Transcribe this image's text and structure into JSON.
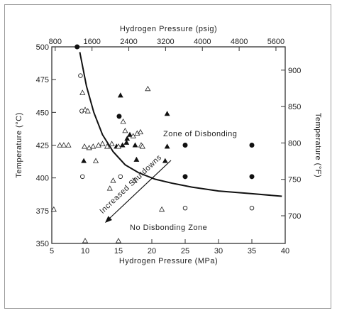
{
  "chart_data": {
    "type": "scatter",
    "top_axis": {
      "label": "Hydrogen Pressure (psig)",
      "ticks": [
        800,
        1600,
        2400,
        3200,
        4000,
        4800,
        5600
      ]
    },
    "bottom_axis": {
      "label": "Hydrogen Pressure (MPa)",
      "range": [
        5,
        40
      ],
      "ticks": [
        5,
        10,
        15,
        20,
        25,
        30,
        35,
        40
      ]
    },
    "left_axis": {
      "label": "Temperature (°C)",
      "range": [
        350,
        500
      ],
      "ticks": [
        350,
        375,
        400,
        425,
        450,
        475,
        500
      ]
    },
    "right_axis": {
      "label": "Temperature (°F)",
      "ticks": [
        700,
        750,
        800,
        850,
        900
      ]
    },
    "annotations": {
      "zone_disbonding": "Zone of Disbonding",
      "zone_no_disbonding": "No Disbonding Zone",
      "arrow_label": "Increased Shutdowns"
    },
    "boundary_curve": [
      {
        "x": 9.2,
        "y": 496
      },
      {
        "x": 10.2,
        "y": 470
      },
      {
        "x": 11.3,
        "y": 450
      },
      {
        "x": 12.6,
        "y": 433
      },
      {
        "x": 14.2,
        "y": 420
      },
      {
        "x": 16.0,
        "y": 410
      },
      {
        "x": 18.0,
        "y": 404
      },
      {
        "x": 20.5,
        "y": 399
      },
      {
        "x": 23.0,
        "y": 396
      },
      {
        "x": 26.0,
        "y": 393
      },
      {
        "x": 30.0,
        "y": 390
      },
      {
        "x": 35.0,
        "y": 388
      },
      {
        "x": 39.5,
        "y": 386
      }
    ],
    "series": [
      {
        "name": "filled circles",
        "marker": "filled-circle",
        "points": [
          {
            "x": 8.8,
            "y": 500
          },
          {
            "x": 15.1,
            "y": 447
          },
          {
            "x": 25,
            "y": 425
          },
          {
            "x": 35,
            "y": 425
          },
          {
            "x": 25,
            "y": 401
          },
          {
            "x": 35,
            "y": 401
          }
        ]
      },
      {
        "name": "open circles",
        "marker": "open-circle",
        "points": [
          {
            "x": 9.3,
            "y": 478
          },
          {
            "x": 9.5,
            "y": 451
          },
          {
            "x": 15.3,
            "y": 401
          },
          {
            "x": 9.6,
            "y": 401
          },
          {
            "x": 25,
            "y": 377
          },
          {
            "x": 35,
            "y": 377
          }
        ]
      },
      {
        "name": "filled triangles",
        "marker": "filled-triangle",
        "points": [
          {
            "x": 15.3,
            "y": 463
          },
          {
            "x": 22.3,
            "y": 449
          },
          {
            "x": 16.3,
            "y": 430
          },
          {
            "x": 16.7,
            "y": 433
          },
          {
            "x": 16.2,
            "y": 427
          },
          {
            "x": 15.6,
            "y": 425
          },
          {
            "x": 14.7,
            "y": 424
          },
          {
            "x": 17.5,
            "y": 425
          },
          {
            "x": 17.7,
            "y": 414
          },
          {
            "x": 9.8,
            "y": 413
          },
          {
            "x": 22.0,
            "y": 413
          },
          {
            "x": 22.3,
            "y": 424
          }
        ]
      },
      {
        "name": "open triangles",
        "marker": "open-triangle",
        "points": [
          {
            "x": 9.6,
            "y": 465
          },
          {
            "x": 10.0,
            "y": 452
          },
          {
            "x": 10.4,
            "y": 451
          },
          {
            "x": 6.2,
            "y": 425
          },
          {
            "x": 6.8,
            "y": 425
          },
          {
            "x": 7.5,
            "y": 425
          },
          {
            "x": 9.9,
            "y": 424
          },
          {
            "x": 10.6,
            "y": 423
          },
          {
            "x": 11.2,
            "y": 424
          },
          {
            "x": 12.0,
            "y": 425
          },
          {
            "x": 12.6,
            "y": 426
          },
          {
            "x": 13.3,
            "y": 424
          },
          {
            "x": 14.0,
            "y": 426
          },
          {
            "x": 15.0,
            "y": 424
          },
          {
            "x": 15.7,
            "y": 443
          },
          {
            "x": 16.0,
            "y": 436
          },
          {
            "x": 17.2,
            "y": 432
          },
          {
            "x": 17.8,
            "y": 434
          },
          {
            "x": 18.3,
            "y": 435
          },
          {
            "x": 19.4,
            "y": 468
          },
          {
            "x": 18.4,
            "y": 425
          },
          {
            "x": 18.6,
            "y": 424
          },
          {
            "x": 11.6,
            "y": 413
          },
          {
            "x": 13.7,
            "y": 392
          },
          {
            "x": 14.2,
            "y": 398
          },
          {
            "x": 17.4,
            "y": 398
          },
          {
            "x": 5.3,
            "y": 376
          },
          {
            "x": 15.0,
            "y": 352
          },
          {
            "x": 10.0,
            "y": 352
          },
          {
            "x": 21.5,
            "y": 376
          }
        ]
      }
    ]
  }
}
